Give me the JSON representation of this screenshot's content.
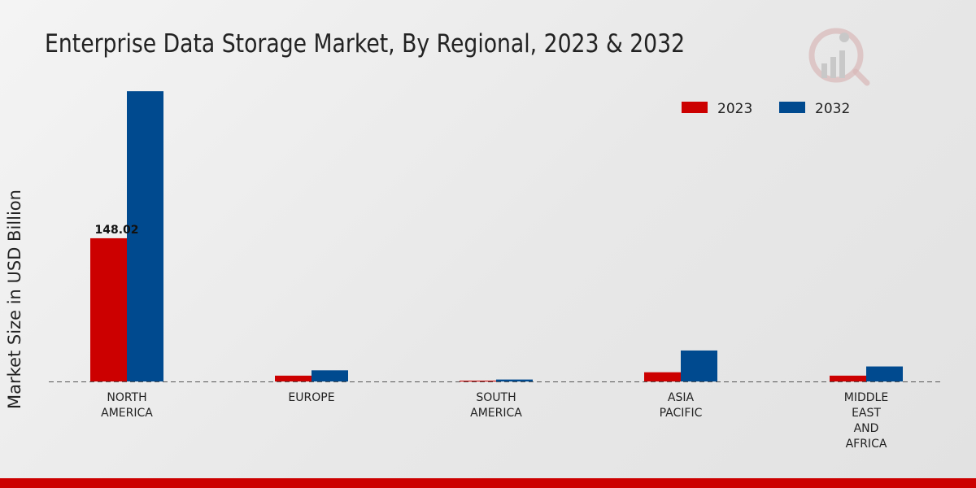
{
  "title": "Enterprise Data Storage Market, By Regional, 2023 & 2032",
  "colors": {
    "s2023": "#cc0000",
    "s2032": "#004a8f",
    "bottom_bar": "#cc0000"
  },
  "chart_data": {
    "type": "bar",
    "title": "Enterprise Data Storage Market, By Regional, 2023 & 2032",
    "ylabel": "Market Size in USD Billion",
    "xlabel": "",
    "categories": [
      [
        "NORTH",
        "AMERICA"
      ],
      [
        "EUROPE"
      ],
      [
        "SOUTH",
        "AMERICA"
      ],
      [
        "ASIA",
        "PACIFIC"
      ],
      [
        "MIDDLE",
        "EAST",
        "AND",
        "AFRICA"
      ]
    ],
    "series": [
      {
        "name": "2023",
        "color": "#cc0000",
        "values": [
          148.02,
          6.0,
          0.5,
          9.5,
          6.0
        ]
      },
      {
        "name": "2032",
        "color": "#004a8f",
        "values": [
          300.0,
          11.5,
          2.0,
          32.0,
          15.5
        ]
      }
    ],
    "data_labels": [
      {
        "series": 0,
        "index": 0,
        "text": "148.02"
      }
    ],
    "ylim": [
      0,
      380
    ],
    "legend_position": "top-right",
    "grid": false
  }
}
